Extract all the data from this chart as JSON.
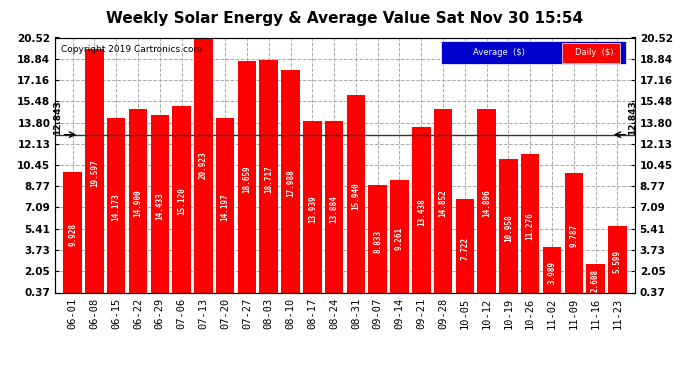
{
  "title": "Weekly Solar Energy & Average Value Sat Nov 30 15:54",
  "copyright": "Copyright 2019 Cartronics.com",
  "average_line": 12.843,
  "average_label": "12.843",
  "bar_color": "#FF0000",
  "background_color": "#FFFFFF",
  "plot_bg_color": "#FFFFFF",
  "legend_avg_color": "#0000CD",
  "legend_daily_color": "#FF0000",
  "categories": [
    "06-01",
    "06-08",
    "06-15",
    "06-22",
    "06-29",
    "07-06",
    "07-13",
    "07-20",
    "07-27",
    "08-03",
    "08-10",
    "08-17",
    "08-24",
    "08-31",
    "09-07",
    "09-14",
    "09-21",
    "09-28",
    "10-05",
    "10-12",
    "10-19",
    "10-26",
    "11-02",
    "11-09",
    "11-16",
    "11-23"
  ],
  "values": [
    9.928,
    19.597,
    14.173,
    14.9,
    14.433,
    15.12,
    20.923,
    14.197,
    18.659,
    18.717,
    17.988,
    13.939,
    13.884,
    15.94,
    8.833,
    9.261,
    13.438,
    14.852,
    7.722,
    14.896,
    10.958,
    11.276,
    3.989,
    9.787,
    2.608,
    5.599
  ],
  "ylim_min": 0.37,
  "ylim_max": 20.52,
  "yticks": [
    0.37,
    2.05,
    3.73,
    5.41,
    7.09,
    8.77,
    10.45,
    12.13,
    13.8,
    15.48,
    17.16,
    18.84,
    20.52
  ],
  "title_fontsize": 11,
  "tick_fontsize": 7.5,
  "value_fontsize": 5.5,
  "copyright_fontsize": 6.5
}
